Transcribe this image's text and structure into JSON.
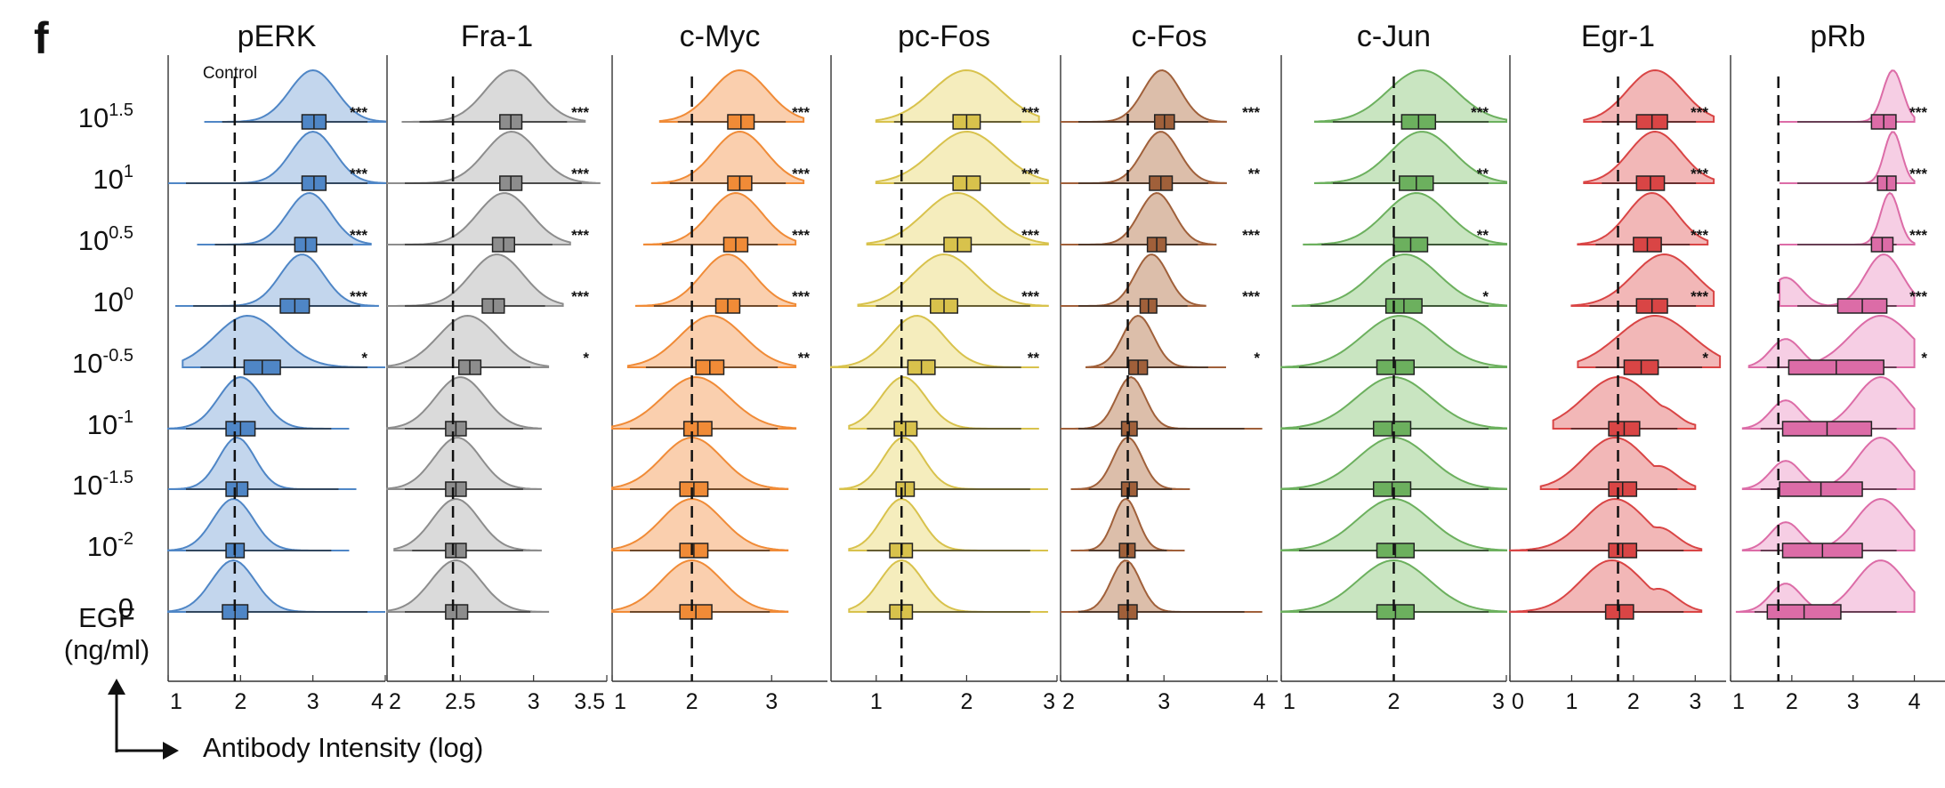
{
  "figure_label": "f",
  "control_label": "Control",
  "y_axis": {
    "rows": [
      "10^1.5",
      "10^1",
      "10^0.5",
      "10^0",
      "10^-0.5",
      "10^-1",
      "10^-1.5",
      "10^-2",
      "0"
    ],
    "rows_display": [
      [
        "10",
        "1.5"
      ],
      [
        "10",
        "1"
      ],
      [
        "10",
        "0.5"
      ],
      [
        "10",
        "0"
      ],
      [
        "10",
        "-0.5"
      ],
      [
        "10",
        "-1"
      ],
      [
        "10",
        "-1.5"
      ],
      [
        "10",
        "-2"
      ],
      [
        "0",
        ""
      ]
    ],
    "title_line1": "EGF",
    "title_line2": "(ng/ml)"
  },
  "x_axis_title": "Antibody Intensity (log)",
  "chart_data": {
    "type": "violin",
    "categories": [
      "10^1.5",
      "10^1",
      "10^0.5",
      "10^0",
      "10^-0.5",
      "10^-1",
      "10^-1.5",
      "10^-2",
      "0"
    ],
    "panels": [
      {
        "title": "pERK",
        "color": "#4f86c6",
        "fill": "#b9cfea",
        "xlim": [
          1,
          4
        ],
        "ticks": [
          "1",
          "2",
          "3",
          "4"
        ],
        "control": 1.92,
        "range": [
          [
            1.5,
            4.0
          ],
          [
            1.0,
            4.0
          ],
          [
            1.4,
            3.8
          ],
          [
            1.1,
            3.9
          ],
          [
            1.2,
            4.0
          ],
          [
            1.0,
            3.5
          ],
          [
            1.0,
            3.6
          ],
          [
            1.0,
            3.5
          ],
          [
            1.0,
            4.0
          ]
        ],
        "peak": [
          3.0,
          3.0,
          2.95,
          2.85,
          2.1,
          2.0,
          1.95,
          1.9,
          1.9
        ],
        "width": [
          0.32,
          0.3,
          0.3,
          0.3,
          0.45,
          0.3,
          0.25,
          0.28,
          0.3
        ],
        "q": [
          [
            2.85,
            3.18
          ],
          [
            2.85,
            3.18
          ],
          [
            2.75,
            3.05
          ],
          [
            2.55,
            2.95
          ],
          [
            2.05,
            2.55
          ],
          [
            1.8,
            2.2
          ],
          [
            1.8,
            2.1
          ],
          [
            1.8,
            2.05
          ],
          [
            1.75,
            2.1
          ]
        ],
        "sig": [
          "***",
          "***",
          "***",
          "***",
          "*",
          "",
          "",
          "",
          ""
        ]
      },
      {
        "title": "Fra-1",
        "color": "#8d8d8d",
        "fill": "#d3d3d3",
        "xlim": [
          2,
          3.5
        ],
        "ticks": [
          "2",
          "2.5",
          "3",
          "3.5"
        ],
        "control": 2.45,
        "range": [
          [
            2.1,
            3.35
          ],
          [
            2.0,
            3.45
          ],
          [
            2.0,
            3.25
          ],
          [
            2.0,
            3.2
          ],
          [
            2.0,
            3.1
          ],
          [
            2.0,
            3.05
          ],
          [
            2.0,
            3.05
          ],
          [
            2.05,
            3.05
          ],
          [
            2.0,
            3.1
          ]
        ],
        "peak": [
          2.85,
          2.85,
          2.8,
          2.75,
          2.55,
          2.5,
          2.48,
          2.47,
          2.47
        ],
        "width": [
          0.18,
          0.18,
          0.18,
          0.18,
          0.2,
          0.17,
          0.16,
          0.16,
          0.17
        ],
        "q": [
          [
            2.77,
            2.92
          ],
          [
            2.77,
            2.92
          ],
          [
            2.72,
            2.87
          ],
          [
            2.65,
            2.8
          ],
          [
            2.49,
            2.64
          ],
          [
            2.4,
            2.54
          ],
          [
            2.4,
            2.54
          ],
          [
            2.4,
            2.54
          ],
          [
            2.4,
            2.55
          ]
        ],
        "sig": [
          "***",
          "***",
          "***",
          "***",
          "*",
          "",
          "",
          "",
          ""
        ]
      },
      {
        "title": "c-Myc",
        "color": "#f08b37",
        "fill": "#f9c7a0",
        "xlim": [
          1,
          3.7
        ],
        "ticks": [
          "1",
          "2",
          "3"
        ],
        "control": 2.0,
        "range": [
          [
            1.6,
            3.4
          ],
          [
            1.5,
            3.4
          ],
          [
            1.4,
            3.3
          ],
          [
            1.3,
            3.3
          ],
          [
            1.2,
            3.3
          ],
          [
            1.0,
            3.3
          ],
          [
            1.0,
            3.2
          ],
          [
            1.0,
            3.2
          ],
          [
            1.0,
            3.2
          ]
        ],
        "peak": [
          2.6,
          2.6,
          2.55,
          2.45,
          2.25,
          2.05,
          2.0,
          2.0,
          2.0
        ],
        "width": [
          0.35,
          0.33,
          0.33,
          0.33,
          0.4,
          0.42,
          0.38,
          0.38,
          0.38
        ],
        "q": [
          [
            2.45,
            2.78
          ],
          [
            2.45,
            2.75
          ],
          [
            2.4,
            2.7
          ],
          [
            2.3,
            2.6
          ],
          [
            2.05,
            2.4
          ],
          [
            1.9,
            2.25
          ],
          [
            1.85,
            2.2
          ],
          [
            1.85,
            2.2
          ],
          [
            1.85,
            2.25
          ]
        ],
        "sig": [
          "***",
          "***",
          "***",
          "***",
          "**",
          "",
          "",
          "",
          ""
        ]
      },
      {
        "title": "pc-Fos",
        "color": "#d8c24c",
        "fill": "#f3eab2",
        "xlim": [
          0.5,
          3
        ],
        "ticks": [
          "1",
          "2",
          "3"
        ],
        "control": 1.28,
        "range": [
          [
            1.0,
            2.8
          ],
          [
            1.0,
            2.9
          ],
          [
            0.9,
            2.9
          ],
          [
            0.8,
            2.9
          ],
          [
            0.5,
            2.8
          ],
          [
            0.7,
            2.8
          ],
          [
            0.6,
            2.9
          ],
          [
            0.7,
            2.9
          ],
          [
            0.7,
            2.9
          ]
        ],
        "peak": [
          2.0,
          2.0,
          1.9,
          1.75,
          1.45,
          1.3,
          1.3,
          1.28,
          1.28
        ],
        "width": [
          0.38,
          0.38,
          0.37,
          0.35,
          0.3,
          0.25,
          0.22,
          0.22,
          0.24
        ],
        "q": [
          [
            1.85,
            2.15
          ],
          [
            1.85,
            2.15
          ],
          [
            1.75,
            2.05
          ],
          [
            1.6,
            1.9
          ],
          [
            1.35,
            1.65
          ],
          [
            1.2,
            1.45
          ],
          [
            1.22,
            1.42
          ],
          [
            1.15,
            1.4
          ],
          [
            1.15,
            1.4
          ]
        ],
        "sig": [
          "***",
          "***",
          "***",
          "***",
          "**",
          "",
          "",
          "",
          ""
        ]
      },
      {
        "title": "c-Fos",
        "color": "#a0603a",
        "fill": "#d6b39b",
        "xlim": [
          2,
          4.1
        ],
        "ticks": [
          "2",
          "3",
          "4"
        ],
        "control": 2.65,
        "range": [
          [
            2.0,
            3.6
          ],
          [
            2.0,
            3.6
          ],
          [
            2.0,
            3.5
          ],
          [
            2.0,
            3.4
          ],
          [
            2.25,
            3.6
          ],
          [
            2.0,
            3.95
          ],
          [
            2.1,
            3.25
          ],
          [
            2.1,
            3.2
          ],
          [
            2.0,
            3.95
          ]
        ],
        "peak": [
          2.98,
          2.97,
          2.93,
          2.88,
          2.75,
          2.68,
          2.65,
          2.63,
          2.63
        ],
        "width": [
          0.18,
          0.18,
          0.17,
          0.16,
          0.15,
          0.14,
          0.14,
          0.12,
          0.14
        ],
        "q": [
          [
            2.91,
            3.1
          ],
          [
            2.86,
            3.08
          ],
          [
            2.84,
            3.02
          ],
          [
            2.77,
            2.93
          ],
          [
            2.66,
            2.84
          ],
          [
            2.59,
            2.74
          ],
          [
            2.59,
            2.74
          ],
          [
            2.57,
            2.72
          ],
          [
            2.56,
            2.74
          ]
        ],
        "sig": [
          "***",
          "**",
          "***",
          "***",
          "*",
          "",
          "",
          "",
          ""
        ]
      },
      {
        "title": "c-Jun",
        "color": "#6cb05e",
        "fill": "#bfe0b6",
        "xlim": [
          1,
          3
        ],
        "ticks": [
          "1",
          "2",
          "3"
        ],
        "control": 2.0,
        "range": [
          [
            1.3,
            3.0
          ],
          [
            1.3,
            3.0
          ],
          [
            1.2,
            3.0
          ],
          [
            1.1,
            3.0
          ],
          [
            1.0,
            3.0
          ],
          [
            1.0,
            3.0
          ],
          [
            1.0,
            3.0
          ],
          [
            1.0,
            3.0
          ],
          [
            1.0,
            3.0
          ]
        ],
        "peak": [
          2.25,
          2.25,
          2.2,
          2.1,
          2.05,
          2.0,
          2.0,
          2.0,
          2.0
        ],
        "width": [
          0.3,
          0.28,
          0.28,
          0.3,
          0.33,
          0.33,
          0.32,
          0.32,
          0.32
        ],
        "q": [
          [
            2.07,
            2.37
          ],
          [
            2.05,
            2.35
          ],
          [
            2.0,
            2.3
          ],
          [
            1.93,
            2.25
          ],
          [
            1.85,
            2.18
          ],
          [
            1.82,
            2.15
          ],
          [
            1.82,
            2.15
          ],
          [
            1.85,
            2.18
          ],
          [
            1.85,
            2.18
          ]
        ],
        "sig": [
          "***",
          "**",
          "**",
          "*",
          "",
          "",
          "",
          "",
          ""
        ]
      },
      {
        "title": "Egr-1",
        "color": "#d94545",
        "fill": "#f0aaaa",
        "xlim": [
          0,
          3.5
        ],
        "ticks": [
          "0",
          "1",
          "2",
          "3"
        ],
        "control": 1.75,
        "range": [
          [
            1.2,
            3.3
          ],
          [
            1.2,
            3.3
          ],
          [
            1.1,
            3.2
          ],
          [
            1.0,
            3.3
          ],
          [
            1.1,
            3.4
          ],
          [
            0.7,
            3.0
          ],
          [
            0.5,
            3.0
          ],
          [
            0.0,
            3.1
          ],
          [
            0.0,
            3.1
          ]
        ],
        "peak": [
          2.35,
          2.35,
          2.3,
          2.5,
          2.35,
          1.75,
          1.7,
          1.7,
          1.65
        ],
        "width": [
          0.45,
          0.42,
          0.4,
          0.5,
          0.6,
          0.55,
          0.5,
          0.5,
          0.5
        ],
        "q": [
          [
            2.05,
            2.55
          ],
          [
            2.05,
            2.5
          ],
          [
            2.0,
            2.45
          ],
          [
            2.05,
            2.55
          ],
          [
            1.85,
            2.4
          ],
          [
            1.6,
            2.1
          ],
          [
            1.6,
            2.05
          ],
          [
            1.6,
            2.05
          ],
          [
            1.55,
            2.0
          ]
        ],
        "sig": [
          "***",
          "***",
          "***",
          "***",
          "*",
          "",
          "",
          "",
          ""
        ]
      },
      {
        "title": "pRb",
        "color": "#dc6ca7",
        "fill": "#f5c6df",
        "xlim": [
          1,
          4.5
        ],
        "ticks": [
          "1",
          "2",
          "3",
          "4"
        ],
        "control": 1.78,
        "range": [
          [
            1.8,
            4.0
          ],
          [
            1.8,
            4.0
          ],
          [
            1.8,
            4.0
          ],
          [
            1.8,
            4.0
          ],
          [
            1.3,
            4.0
          ],
          [
            1.2,
            4.0
          ],
          [
            1.2,
            4.0
          ],
          [
            1.2,
            4.0
          ],
          [
            1.1,
            4.0
          ]
        ],
        "peak": [
          3.65,
          3.65,
          3.6,
          3.5,
          3.45,
          3.45,
          3.45,
          3.45,
          3.45
        ],
        "width": [
          0.16,
          0.14,
          0.15,
          0.3,
          0.5,
          0.4,
          0.38,
          0.4,
          0.4
        ],
        "q": [
          [
            3.3,
            3.7
          ],
          [
            3.4,
            3.7
          ],
          [
            3.3,
            3.65
          ],
          [
            2.75,
            3.55
          ],
          [
            1.95,
            3.5
          ],
          [
            1.85,
            3.3
          ],
          [
            1.8,
            3.15
          ],
          [
            1.85,
            3.15
          ],
          [
            1.6,
            2.8
          ]
        ],
        "sig": [
          "***",
          "***",
          "***",
          "***",
          "*",
          "",
          "",
          "",
          ""
        ]
      }
    ]
  }
}
